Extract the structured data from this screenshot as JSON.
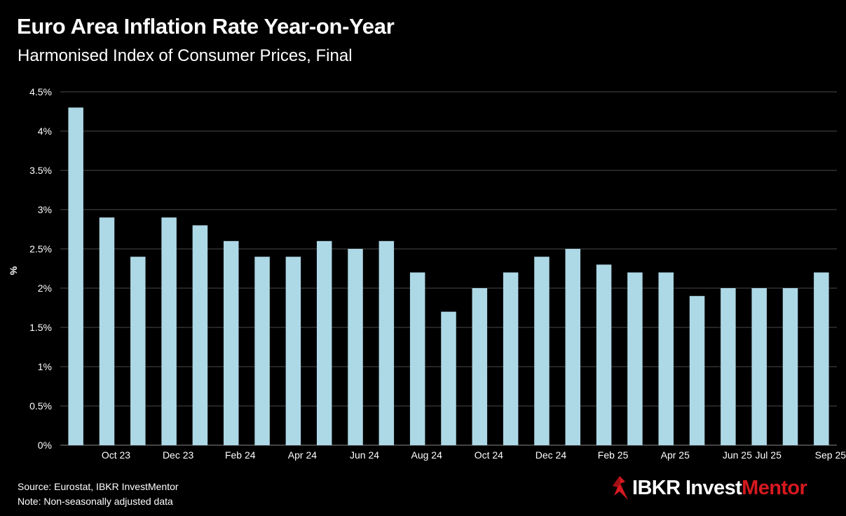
{
  "header": {
    "title": "Euro Area Inflation Rate Year-on-Year",
    "subtitle": "Harmonised Index of Consumer Prices, Final"
  },
  "footer": {
    "source": "Source: Eurostat, IBKR InvestMentor",
    "note": "Note: Non-seasonally adjusted data"
  },
  "brand": {
    "name_primary": "IBKR Invest",
    "name_accent": "Mentor",
    "accent_color": "#d71920",
    "icon": "ibkr-logo-icon"
  },
  "colors": {
    "background": "#000000",
    "bar": "#add8e6",
    "grid": "#4a4a4a",
    "text": "#ffffff"
  },
  "chart_data": {
    "type": "bar",
    "title": "Euro Area Inflation Rate Year-on-Year",
    "subtitle": "Harmonised Index of Consumer Prices, Final",
    "xlabel": "",
    "ylabel": "%",
    "ylim": [
      0,
      4.5
    ],
    "yticks": [
      "0%",
      "0.5%",
      "1%",
      "1.5%",
      "2%",
      "2.5%",
      "3%",
      "3.5%",
      "4%",
      "4.5%"
    ],
    "grid": true,
    "legend": "none",
    "categories": [
      "Sep 23",
      "Oct 23",
      "Nov 23",
      "Dec 23",
      "Jan 24",
      "Feb 24",
      "Mar 24",
      "Apr 24",
      "May 24",
      "Jun 24",
      "Jul 24",
      "Aug 24",
      "Sep 24",
      "Oct 24",
      "Nov 24",
      "Dec 24",
      "Jan 25",
      "Feb 25",
      "Mar 25",
      "Apr 25",
      "May 25",
      "Jun 25",
      "Jul 25",
      "Aug 25",
      "Sep 25"
    ],
    "tick_labels": [
      "",
      "Oct 23",
      "",
      "Dec 23",
      "",
      "Feb 24",
      "",
      "Apr 24",
      "",
      "Jun 24",
      "",
      "Aug 24",
      "",
      "Oct 24",
      "",
      "Dec 24",
      "",
      "Feb 25",
      "",
      "Apr 25",
      "",
      "Jun 25",
      "Jul 25",
      "",
      "Sep 25"
    ],
    "values": [
      4.3,
      2.9,
      2.4,
      2.9,
      2.8,
      2.6,
      2.4,
      2.4,
      2.6,
      2.5,
      2.6,
      2.2,
      1.7,
      2.0,
      2.2,
      2.4,
      2.5,
      2.3,
      2.2,
      2.2,
      1.9,
      2.0,
      2.0,
      2.0,
      2.2
    ]
  }
}
